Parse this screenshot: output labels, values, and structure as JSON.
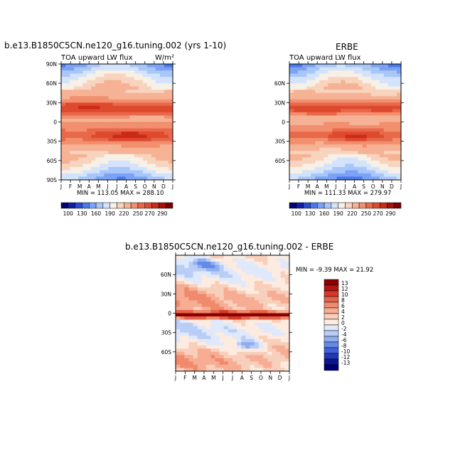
{
  "chart_data": [
    {
      "type": "heatmap",
      "title": "b.e13.B1850C5CN.ne120_g16.tuning.002 (yrs 1-10)",
      "subtitle_left": "TOA upward LW flux",
      "units": "W/m²",
      "minmax": "MIN = 113.05  MAX = 288.10",
      "x_ticks": [
        "J",
        "F",
        "M",
        "A",
        "M",
        "J",
        "J",
        "A",
        "S",
        "O",
        "N",
        "D",
        "J"
      ],
      "y_ticks": [
        "90N",
        "60N",
        "30N",
        "0",
        "30S",
        "60S",
        "90S"
      ],
      "ylim": [
        -90,
        90
      ],
      "colorbar": {
        "labels": [
          "100",
          "130",
          "160",
          "190",
          "220",
          "250",
          "270",
          "290"
        ],
        "colors": [
          "#03006f",
          "#0d1fa8",
          "#2a4ad6",
          "#4a78ec",
          "#7ba2f4",
          "#a9c6f9",
          "#d2e3fb",
          "#f7f0e6",
          "#f8d3bd",
          "#f6b294",
          "#f18f6e",
          "#e8684a",
          "#de4a2e",
          "#cb2a18",
          "#a51108",
          "#800000"
        ],
        "levels": [
          100,
          115,
          130,
          145,
          160,
          175,
          190,
          205,
          220,
          235,
          250,
          260,
          270,
          280,
          290
        ]
      },
      "model": "flux"
    },
    {
      "type": "heatmap",
      "title": "ERBE",
      "subtitle_left": "TOA upward LW flux",
      "minmax": "MIN = 111.33  MAX = 279.97",
      "x_ticks": [
        "J",
        "F",
        "M",
        "A",
        "M",
        "J",
        "J",
        "A",
        "S",
        "O",
        "N",
        "D",
        "J"
      ],
      "y_ticks": [
        "60N",
        "30N",
        "0",
        "30S",
        "60S"
      ],
      "ylim": [
        -90,
        90
      ],
      "colorbar": {
        "labels": [
          "100",
          "130",
          "160",
          "190",
          "220",
          "250",
          "270",
          "290"
        ]
      },
      "model": "flux"
    },
    {
      "type": "heatmap",
      "title": "b.e13.B1850C5CN.ne120_g16.tuning.002 - ERBE",
      "minmax": "MIN =  -9.39  MAX =  21.92",
      "x_ticks": [
        "J",
        "F",
        "M",
        "A",
        "M",
        "J",
        "J",
        "A",
        "S",
        "O",
        "N",
        "D",
        "J"
      ],
      "y_ticks": [
        "60N",
        "30N",
        "0",
        "30S",
        "60S"
      ],
      "ylim": [
        -90,
        90
      ],
      "colorbar": {
        "labels": [
          "13",
          "12",
          "10",
          "8",
          "6",
          "4",
          "2",
          "0",
          "-2",
          "-4",
          "-6",
          "-8",
          "-10",
          "-12",
          "-13"
        ],
        "colors": [
          "#8b0000",
          "#b41414",
          "#d33a2a",
          "#e4634a",
          "#ef8a6c",
          "#f6ad93",
          "#f8cfbb",
          "#fdebe0",
          "#dfe9fb",
          "#b9cdf6",
          "#8eaef0",
          "#6489e6",
          "#3f62d8",
          "#2338b8",
          "#0d158f",
          "#000075"
        ]
      },
      "model": "diff"
    }
  ]
}
